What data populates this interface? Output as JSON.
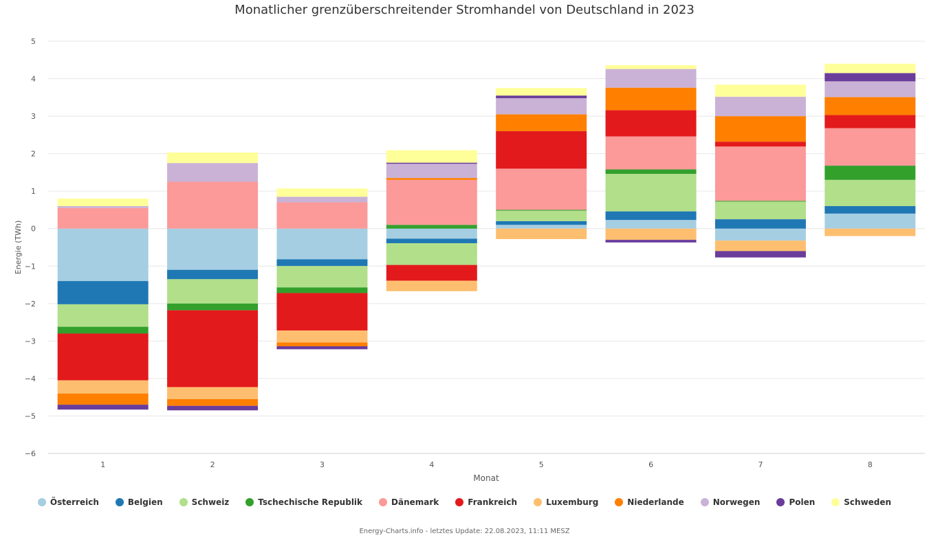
{
  "chart_data": {
    "type": "bar",
    "stacked": true,
    "title": "Monatlicher grenzüberschreitender Stromhandel von Deutschland in 2023",
    "xlabel": "Monat",
    "ylabel": "Energie (TWh)",
    "ylim": [
      -6,
      5
    ],
    "yticks": [
      "5",
      "4",
      "3",
      "2",
      "1",
      "0",
      "−1",
      "−2",
      "−3",
      "−4",
      "−5",
      "−6"
    ],
    "categories": [
      "1",
      "2",
      "3",
      "4",
      "5",
      "6",
      "7",
      "8"
    ],
    "series": [
      {
        "name": "Österreich",
        "color": "#a6cee3",
        "values": [
          -1.4,
          -1.1,
          -0.82,
          -0.27,
          0.1,
          0.23,
          -0.32,
          0.4
        ]
      },
      {
        "name": "Belgien",
        "color": "#1f78b4",
        "values": [
          -0.62,
          -0.25,
          -0.18,
          -0.12,
          0.1,
          0.23,
          0.25,
          0.2
        ]
      },
      {
        "name": "Schweiz",
        "color": "#b2df8a",
        "values": [
          -0.6,
          -0.65,
          -0.57,
          -0.58,
          0.28,
          1.0,
          0.47,
          0.7
        ]
      },
      {
        "name": "Tschechische Republik",
        "color": "#33a02c",
        "values": [
          -0.18,
          -0.18,
          -0.15,
          0.1,
          0.02,
          0.12,
          0.02,
          0.38
        ]
      },
      {
        "name": "Dänemark",
        "color": "#fb9a99",
        "values": [
          0.55,
          1.25,
          0.7,
          1.2,
          1.1,
          0.88,
          1.45,
          1.0
        ]
      },
      {
        "name": "Frankreich",
        "color": "#e31a1c",
        "values": [
          -1.25,
          -2.05,
          -1.0,
          -0.42,
          1.0,
          0.7,
          0.13,
          0.35
        ]
      },
      {
        "name": "Luxemburg",
        "color": "#fdbf6f",
        "values": [
          -0.35,
          -0.32,
          -0.32,
          -0.28,
          -0.28,
          -0.3,
          -0.28,
          -0.2
        ]
      },
      {
        "name": "Niederlande",
        "color": "#ff7f00",
        "values": [
          -0.3,
          -0.18,
          -0.1,
          0.05,
          0.45,
          0.6,
          0.68,
          0.48
        ]
      },
      {
        "name": "Norwegen",
        "color": "#cab2d6",
        "values": [
          0.05,
          0.5,
          0.15,
          0.38,
          0.43,
          0.5,
          0.52,
          0.42
        ]
      },
      {
        "name": "Polen",
        "color": "#6a3d9a",
        "values": [
          -0.13,
          -0.12,
          -0.08,
          0.03,
          0.07,
          -0.07,
          -0.17,
          0.22
        ]
      },
      {
        "name": "Schweden",
        "color": "#ffff99",
        "values": [
          0.2,
          0.28,
          0.22,
          0.33,
          0.2,
          0.1,
          0.32,
          0.25
        ]
      }
    ]
  },
  "credits": "Energy-Charts.info - letztes Update: 22.08.2023, 11:11 MESZ"
}
